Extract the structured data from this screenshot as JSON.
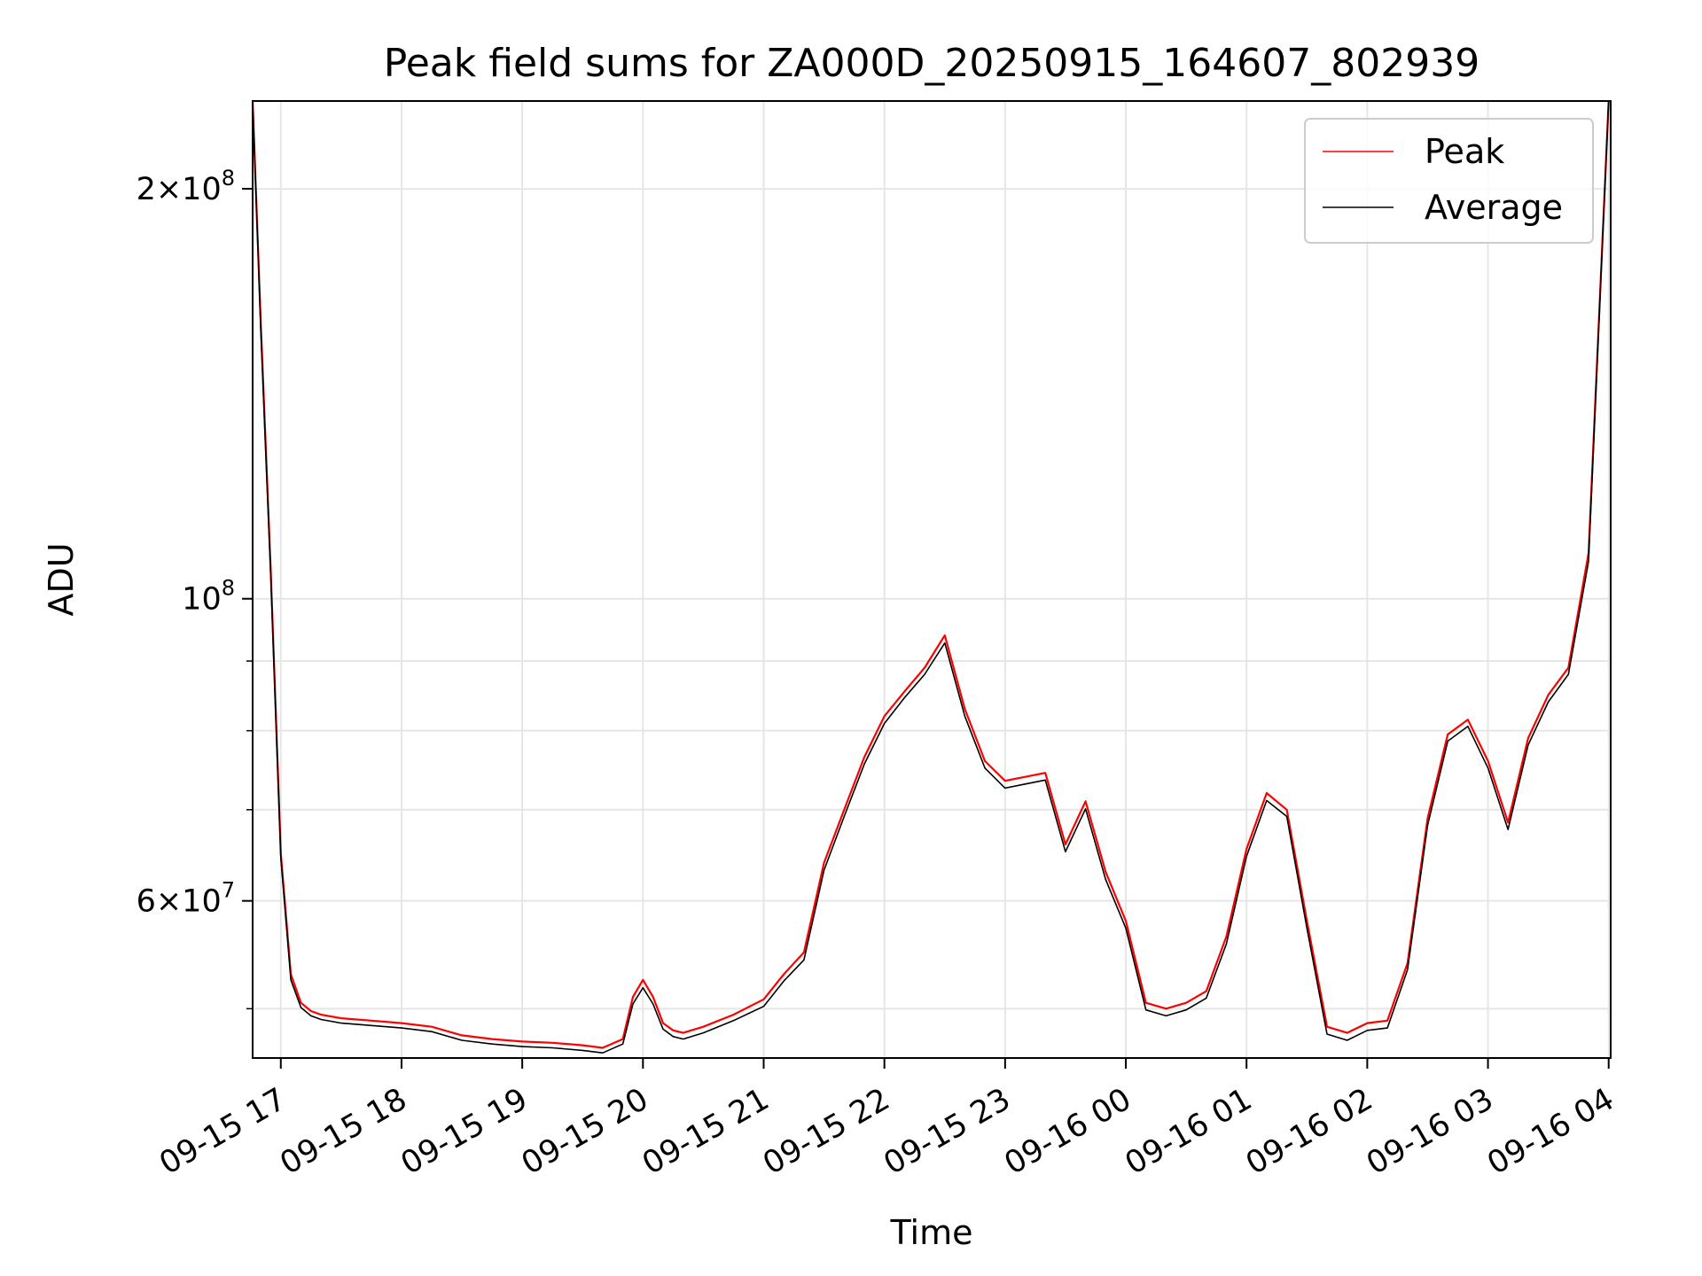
{
  "chart_data": {
    "type": "line",
    "title": "Peak field sums for ZA000D_20250915_164607_802939",
    "xlabel": "Time",
    "ylabel": "ADU",
    "yscale": "log",
    "grid": true,
    "legend_position": "upper right",
    "xlim": [
      "2025-09-15 16:46",
      "2025-09-16 04:01"
    ],
    "ylim": [
      46000000,
      232000000
    ],
    "x_ticks": [
      {
        "t": "2025-09-15 17:00",
        "label": "09-15 17"
      },
      {
        "t": "2025-09-15 18:00",
        "label": "09-15 18"
      },
      {
        "t": "2025-09-15 19:00",
        "label": "09-15 19"
      },
      {
        "t": "2025-09-15 20:00",
        "label": "09-15 20"
      },
      {
        "t": "2025-09-15 21:00",
        "label": "09-15 21"
      },
      {
        "t": "2025-09-15 22:00",
        "label": "09-15 22"
      },
      {
        "t": "2025-09-15 23:00",
        "label": "09-15 23"
      },
      {
        "t": "2025-09-16 00:00",
        "label": "09-16 00"
      },
      {
        "t": "2025-09-16 01:00",
        "label": "09-16 01"
      },
      {
        "t": "2025-09-16 02:00",
        "label": "09-16 02"
      },
      {
        "t": "2025-09-16 03:00",
        "label": "09-16 03"
      },
      {
        "t": "2025-09-16 04:00",
        "label": "09-16 04"
      }
    ],
    "y_ticks": [
      {
        "v": 200000000,
        "mant": "2",
        "exp": "8"
      },
      {
        "v": 100000000,
        "mant": "",
        "exp": "8"
      },
      {
        "v": 60000000,
        "mant": "6",
        "exp": "7"
      }
    ],
    "y_minor_ticks": [
      50000000,
      70000000,
      80000000,
      90000000
    ],
    "series": [
      {
        "name": "Peak",
        "color": "#ff0000",
        "x": [
          "2025-09-15 16:46",
          "2025-09-15 16:50",
          "2025-09-15 16:55",
          "2025-09-15 17:00",
          "2025-09-15 17:05",
          "2025-09-15 17:10",
          "2025-09-15 17:15",
          "2025-09-15 17:20",
          "2025-09-15 17:30",
          "2025-09-15 17:45",
          "2025-09-15 18:00",
          "2025-09-15 18:15",
          "2025-09-15 18:30",
          "2025-09-15 18:45",
          "2025-09-15 19:00",
          "2025-09-15 19:15",
          "2025-09-15 19:30",
          "2025-09-15 19:40",
          "2025-09-15 19:50",
          "2025-09-15 19:55",
          "2025-09-15 20:00",
          "2025-09-15 20:05",
          "2025-09-15 20:10",
          "2025-09-15 20:15",
          "2025-09-15 20:20",
          "2025-09-15 20:30",
          "2025-09-15 20:45",
          "2025-09-15 21:00",
          "2025-09-15 21:10",
          "2025-09-15 21:20",
          "2025-09-15 21:30",
          "2025-09-15 21:40",
          "2025-09-15 21:50",
          "2025-09-15 22:00",
          "2025-09-15 22:10",
          "2025-09-15 22:20",
          "2025-09-15 22:30",
          "2025-09-15 22:40",
          "2025-09-15 22:50",
          "2025-09-15 23:00",
          "2025-09-15 23:10",
          "2025-09-15 23:20",
          "2025-09-15 23:30",
          "2025-09-15 23:40",
          "2025-09-15 23:50",
          "2025-09-16 00:00",
          "2025-09-16 00:10",
          "2025-09-16 00:20",
          "2025-09-16 00:30",
          "2025-09-16 00:40",
          "2025-09-16 00:50",
          "2025-09-16 01:00",
          "2025-09-16 01:10",
          "2025-09-16 01:20",
          "2025-09-16 01:30",
          "2025-09-16 01:40",
          "2025-09-16 01:50",
          "2025-09-16 02:00",
          "2025-09-16 02:10",
          "2025-09-16 02:20",
          "2025-09-16 02:30",
          "2025-09-16 02:40",
          "2025-09-16 02:50",
          "2025-09-16 03:00",
          "2025-09-16 03:10",
          "2025-09-16 03:20",
          "2025-09-16 03:30",
          "2025-09-16 03:40",
          "2025-09-16 03:50",
          "2025-09-16 04:00"
        ],
        "y": [
          232000000,
          160000000,
          105000000,
          65000000,
          53000000,
          50500000,
          49800000,
          49500000,
          49200000,
          49000000,
          48800000,
          48500000,
          47800000,
          47500000,
          47300000,
          47200000,
          47000000,
          46800000,
          47500000,
          51000000,
          52500000,
          51000000,
          48800000,
          48200000,
          48000000,
          48500000,
          49500000,
          50800000,
          53000000,
          55000000,
          64000000,
          70000000,
          76500000,
          82000000,
          85500000,
          89000000,
          94000000,
          83000000,
          76000000,
          73500000,
          74000000,
          74500000,
          66000000,
          71000000,
          63000000,
          58000000,
          50500000,
          50000000,
          50500000,
          51500000,
          56500000,
          65500000,
          72000000,
          70000000,
          58000000,
          48500000,
          48000000,
          48800000,
          49000000,
          54000000,
          69000000,
          79500000,
          81500000,
          76000000,
          68500000,
          79000000,
          85000000,
          89000000,
          108000000,
          232000000
        ]
      },
      {
        "name": "Average",
        "color": "#000000",
        "x": [
          "2025-09-15 16:46",
          "2025-09-15 16:50",
          "2025-09-15 16:55",
          "2025-09-15 17:00",
          "2025-09-15 17:05",
          "2025-09-15 17:10",
          "2025-09-15 17:15",
          "2025-09-15 17:20",
          "2025-09-15 17:30",
          "2025-09-15 17:45",
          "2025-09-15 18:00",
          "2025-09-15 18:15",
          "2025-09-15 18:30",
          "2025-09-15 18:45",
          "2025-09-15 19:00",
          "2025-09-15 19:15",
          "2025-09-15 19:30",
          "2025-09-15 19:40",
          "2025-09-15 19:50",
          "2025-09-15 19:55",
          "2025-09-15 20:00",
          "2025-09-15 20:05",
          "2025-09-15 20:10",
          "2025-09-15 20:15",
          "2025-09-15 20:20",
          "2025-09-15 20:30",
          "2025-09-15 20:45",
          "2025-09-15 21:00",
          "2025-09-15 21:10",
          "2025-09-15 21:20",
          "2025-09-15 21:30",
          "2025-09-15 21:40",
          "2025-09-15 21:50",
          "2025-09-15 22:00",
          "2025-09-15 22:10",
          "2025-09-15 22:20",
          "2025-09-15 22:30",
          "2025-09-15 22:40",
          "2025-09-15 22:50",
          "2025-09-15 23:00",
          "2025-09-15 23:10",
          "2025-09-15 23:20",
          "2025-09-15 23:30",
          "2025-09-15 23:40",
          "2025-09-15 23:50",
          "2025-09-16 00:00",
          "2025-09-16 00:10",
          "2025-09-16 00:20",
          "2025-09-16 00:30",
          "2025-09-16 00:40",
          "2025-09-16 00:50",
          "2025-09-16 01:00",
          "2025-09-16 01:10",
          "2025-09-16 01:20",
          "2025-09-16 01:30",
          "2025-09-16 01:40",
          "2025-09-16 01:50",
          "2025-09-16 02:00",
          "2025-09-16 02:10",
          "2025-09-16 02:20",
          "2025-09-16 02:30",
          "2025-09-16 02:40",
          "2025-09-16 02:50",
          "2025-09-16 03:00",
          "2025-09-16 03:10",
          "2025-09-16 03:20",
          "2025-09-16 03:30",
          "2025-09-16 03:40",
          "2025-09-16 03:50",
          "2025-09-16 04:00"
        ],
        "y": [
          232000000,
          158000000,
          104000000,
          64500000,
          52500000,
          50100000,
          49400000,
          49100000,
          48800000,
          48600000,
          48400000,
          48100000,
          47400000,
          47100000,
          46900000,
          46800000,
          46600000,
          46400000,
          47100000,
          50400000,
          51800000,
          50400000,
          48300000,
          47700000,
          47500000,
          48000000,
          49000000,
          50200000,
          52400000,
          54300000,
          63200000,
          69200000,
          75600000,
          81000000,
          84600000,
          88000000,
          92800000,
          82000000,
          75100000,
          72600000,
          73100000,
          73600000,
          65200000,
          70100000,
          62200000,
          57300000,
          49900000,
          49400000,
          49900000,
          50900000,
          55800000,
          64700000,
          71100000,
          69200000,
          57300000,
          47900000,
          47400000,
          48200000,
          48400000,
          53400000,
          68200000,
          78600000,
          80600000,
          75100000,
          67700000,
          78100000,
          84000000,
          88000000,
          106500000,
          232000000
        ]
      }
    ]
  }
}
